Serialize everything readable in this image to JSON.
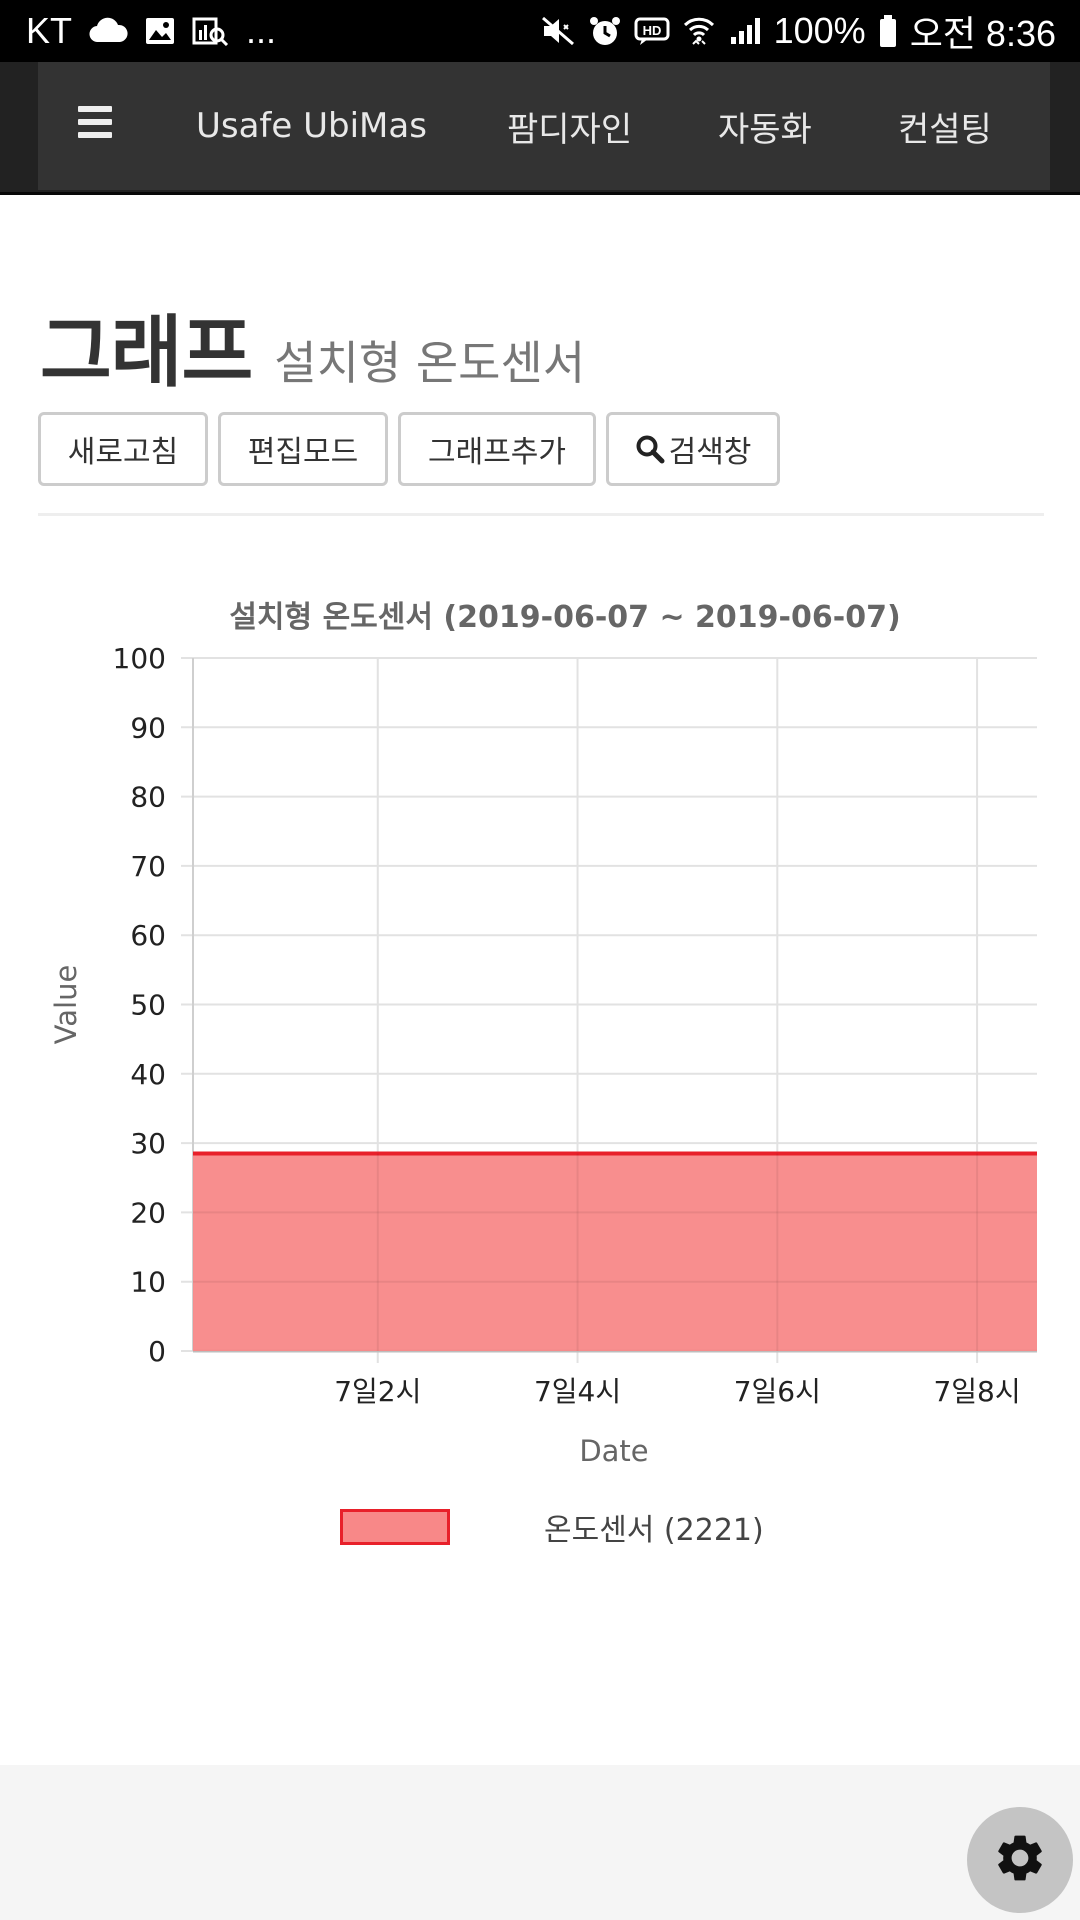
{
  "status_bar": {
    "carrier": "KT",
    "more": "...",
    "battery": "100%",
    "time": "오전 8:36",
    "icons": [
      "cloud-icon",
      "image-icon",
      "chart-search-icon",
      "mute-icon",
      "alarm-icon",
      "hd-icon",
      "wifi-icon",
      "signal-icon",
      "battery-icon"
    ]
  },
  "nav": {
    "menu_icon": "hamburger-icon",
    "items": [
      "Usafe UbiMas",
      "팜디자인",
      "자동화",
      "컨설팅"
    ]
  },
  "page": {
    "title": "그래프",
    "subtitle": "설치형 온도센서"
  },
  "buttons": {
    "refresh": "새로고침",
    "edit_mode": "편집모드",
    "add_graph": "그래프추가",
    "search": "검색창"
  },
  "chart_data": {
    "type": "area",
    "title": "설치형 온도센서 (2019-06-07 ~ 2019-06-07)",
    "xlabel": "Date",
    "ylabel": "Value",
    "ylim": [
      0,
      100
    ],
    "yticks": [
      0,
      10,
      20,
      30,
      40,
      50,
      60,
      70,
      80,
      90,
      100
    ],
    "xlim": [
      0.15,
      8.6
    ],
    "xticks": [
      {
        "value": 2,
        "label": "7일2시"
      },
      {
        "value": 4,
        "label": "7일4시"
      },
      {
        "value": 6,
        "label": "7일6시"
      },
      {
        "value": 8,
        "label": "7일8시"
      }
    ],
    "grid": true,
    "series": [
      {
        "name": "온도센서 (2221)",
        "color": "#e8202a",
        "fill": "#f88888",
        "x": [
          0.15,
          8.6
        ],
        "y": [
          28.5,
          28.5
        ]
      }
    ],
    "legend": "bottom-center"
  },
  "colors": {
    "navbar": "#333333",
    "series_line": "#e8202a",
    "series_fill": "#f88888"
  },
  "footer": {
    "settings_icon": "gear-icon"
  }
}
